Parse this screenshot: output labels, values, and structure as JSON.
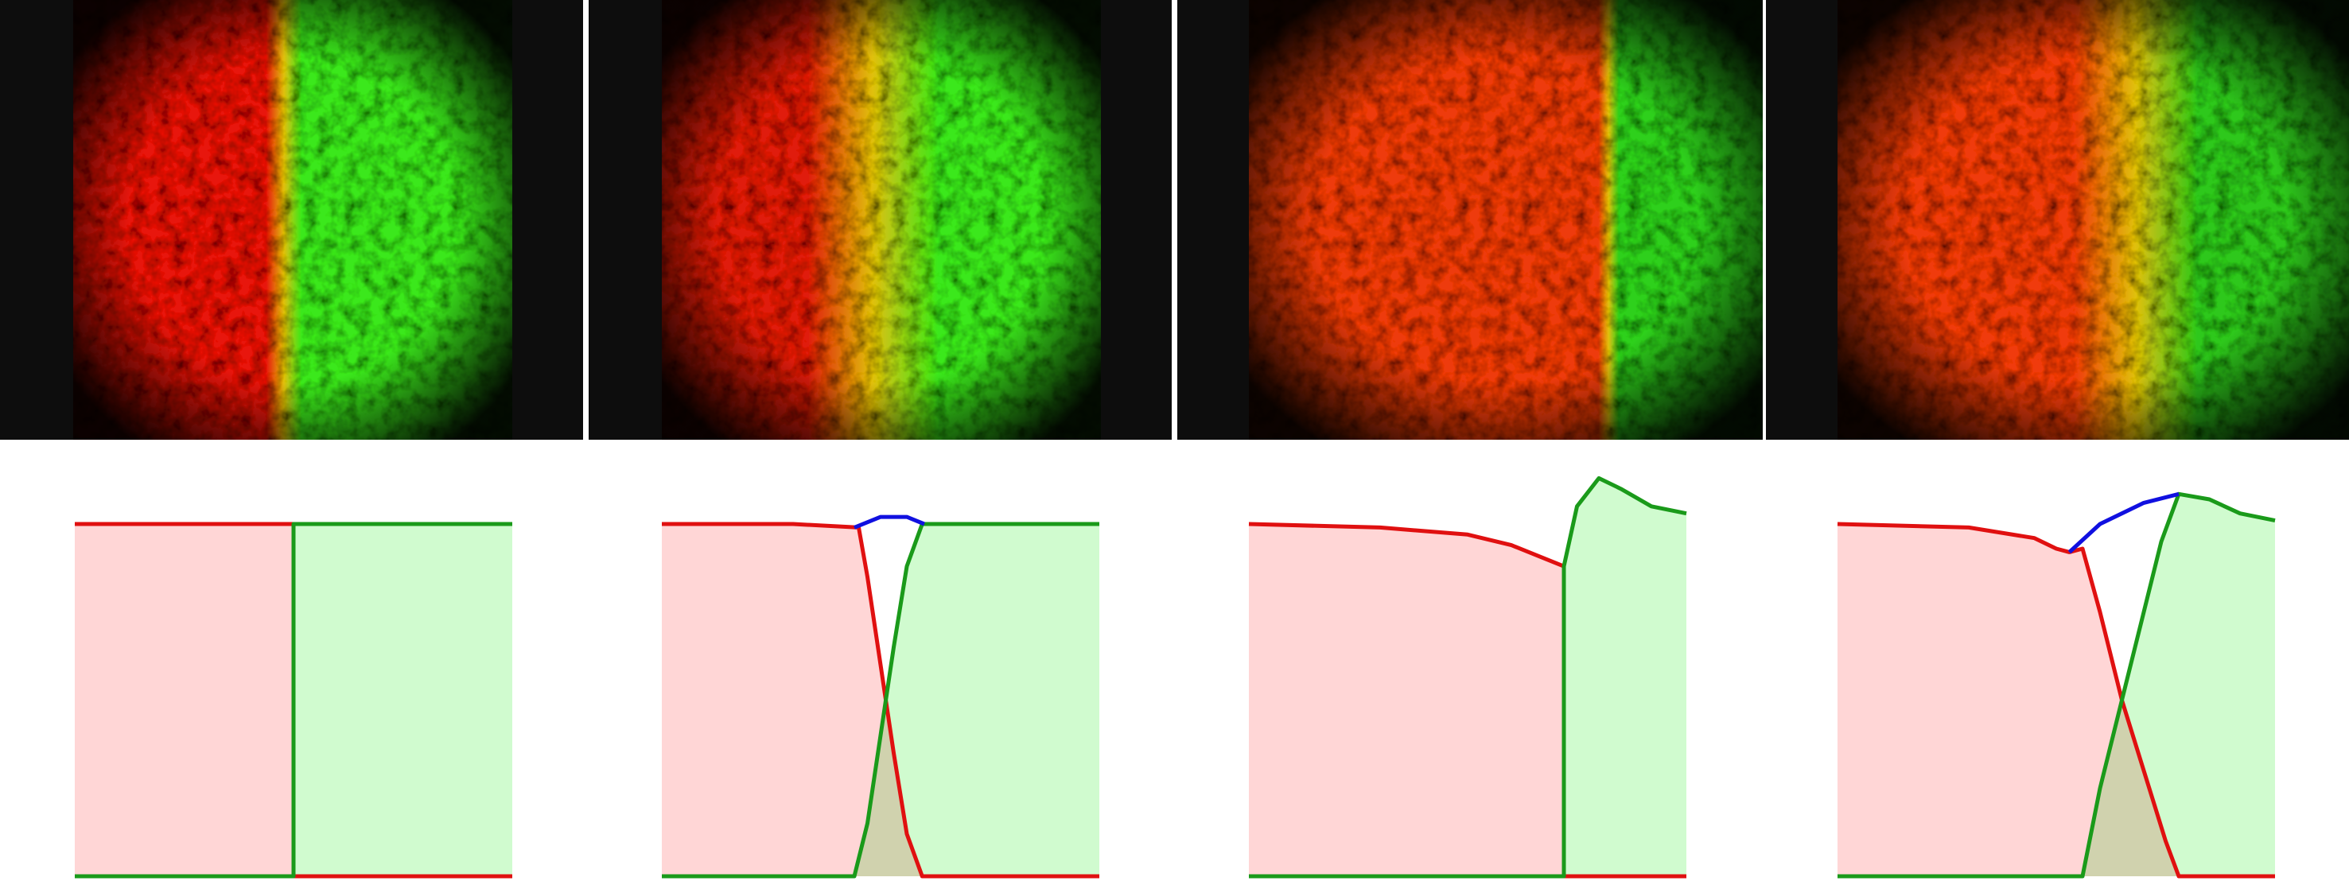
{
  "colors": {
    "red_species": "#e01010",
    "green_species": "#1a9a1a",
    "sum": "#1010e0",
    "red_fill": "#ffd6d6",
    "green_fill": "#d0fbcf",
    "micro_red": "#ff2a00",
    "micro_green": "#33ee11"
  },
  "micrographs": [
    {
      "left_color": "#e81808",
      "right_color": "#3ae81a",
      "boundary": 0.48,
      "mixing_width": 0.04
    },
    {
      "left_color": "#e01a08",
      "right_color": "#3ae81a",
      "boundary": 0.48,
      "mixing_width": 0.15
    },
    {
      "left_color": "#ee3a0a",
      "right_color": "#2ed01a",
      "boundary": 0.7,
      "mixing_width": 0.02
    },
    {
      "left_color": "#f03a0a",
      "right_color": "#2ec81a",
      "boundary": 0.58,
      "mixing_width": 0.12
    }
  ],
  "chart_data": [
    {
      "type": "area",
      "series": [
        {
          "color": "red",
          "points": [
            [
              0,
              1
            ],
            [
              0.5,
              1
            ],
            [
              0.5,
              0
            ],
            [
              1,
              0
            ]
          ]
        },
        {
          "color": "green",
          "points": [
            [
              0,
              0
            ],
            [
              0.5,
              0
            ],
            [
              0.5,
              1
            ],
            [
              1,
              1
            ]
          ]
        }
      ]
    },
    {
      "type": "area",
      "series": [
        {
          "color": "red",
          "points": [
            [
              0,
              1
            ],
            [
              0.3,
              1
            ],
            [
              0.45,
              0.99
            ],
            [
              0.47,
              0.85
            ],
            [
              0.5,
              0.6
            ],
            [
              0.53,
              0.35
            ],
            [
              0.56,
              0.12
            ],
            [
              0.595,
              0
            ],
            [
              1,
              0
            ]
          ]
        },
        {
          "color": "green",
          "points": [
            [
              0,
              0
            ],
            [
              0.44,
              0
            ],
            [
              0.47,
              0.15
            ],
            [
              0.5,
              0.4
            ],
            [
              0.53,
              0.65
            ],
            [
              0.56,
              0.88
            ],
            [
              0.595,
              1
            ],
            [
              1,
              1
            ]
          ]
        },
        {
          "color": "blue",
          "points": [
            [
              0.44,
              0.99
            ],
            [
              0.5,
              1.02
            ],
            [
              0.56,
              1.02
            ],
            [
              0.6,
              1.0
            ]
          ]
        }
      ]
    },
    {
      "type": "area",
      "series": [
        {
          "color": "red",
          "points": [
            [
              0,
              1
            ],
            [
              0.3,
              0.99
            ],
            [
              0.5,
              0.97
            ],
            [
              0.6,
              0.94
            ],
            [
              0.68,
              0.9
            ],
            [
              0.72,
              0.88
            ],
            [
              0.72,
              0
            ],
            [
              1,
              0
            ]
          ]
        },
        {
          "color": "green",
          "points": [
            [
              0,
              0
            ],
            [
              0.72,
              0
            ],
            [
              0.72,
              0.88
            ],
            [
              0.75,
              1.05
            ],
            [
              0.8,
              1.13
            ],
            [
              0.85,
              1.1
            ],
            [
              0.92,
              1.05
            ],
            [
              1,
              1.03
            ]
          ]
        }
      ]
    },
    {
      "type": "area",
      "series": [
        {
          "color": "red",
          "points": [
            [
              0,
              1
            ],
            [
              0.3,
              0.99
            ],
            [
              0.45,
              0.96
            ],
            [
              0.5,
              0.93
            ],
            [
              0.53,
              0.92
            ],
            [
              0.56,
              0.93
            ],
            [
              0.6,
              0.75
            ],
            [
              0.65,
              0.5
            ],
            [
              0.7,
              0.3
            ],
            [
              0.75,
              0.1
            ],
            [
              0.78,
              0
            ],
            [
              1,
              0
            ]
          ]
        },
        {
          "color": "green",
          "points": [
            [
              0,
              0
            ],
            [
              0.56,
              0
            ],
            [
              0.6,
              0.25
            ],
            [
              0.65,
              0.5
            ],
            [
              0.7,
              0.75
            ],
            [
              0.74,
              0.95
            ],
            [
              0.78,
              1.085
            ],
            [
              0.85,
              1.07
            ],
            [
              0.92,
              1.03
            ],
            [
              1,
              1.01
            ]
          ]
        },
        {
          "color": "blue",
          "points": [
            [
              0.53,
              0.92
            ],
            [
              0.6,
              1.0
            ],
            [
              0.7,
              1.06
            ],
            [
              0.78,
              1.085
            ]
          ]
        }
      ]
    }
  ]
}
